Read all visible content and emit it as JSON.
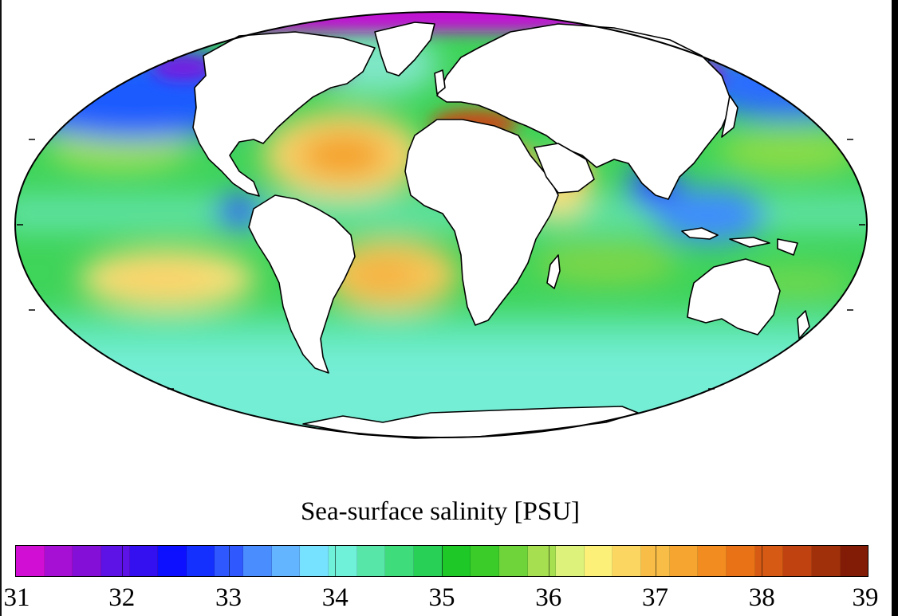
{
  "map": {
    "title": "Sea-surface salinity [PSU]",
    "projection": "mollweide",
    "colors": {
      "land": "#ffffff",
      "coastline": "#000000",
      "ocean_base": "#3fd45a"
    }
  },
  "colorbar": {
    "min": 31,
    "max": 39,
    "tick_labels": [
      "31",
      "32",
      "33",
      "34",
      "35",
      "36",
      "37",
      "38",
      "39"
    ],
    "colors": [
      "#d10fd4",
      "#a60fd4",
      "#8410d8",
      "#5d12e6",
      "#3410f0",
      "#0d10ff",
      "#1430ff",
      "#2f59ff",
      "#4a8dff",
      "#63b5ff",
      "#76e2ff",
      "#6ff0d8",
      "#58e6a8",
      "#3fdc7b",
      "#29d056",
      "#1ec826",
      "#3ccc2a",
      "#6fd43a",
      "#a6e050",
      "#dcf27a",
      "#fdf078",
      "#fbd660",
      "#f8bd46",
      "#f6a530",
      "#f28b20",
      "#ea7216",
      "#d65a14",
      "#bf4210",
      "#a0300a",
      "#821c06",
      "#5c0a00",
      "#5c0a00"
    ]
  }
}
